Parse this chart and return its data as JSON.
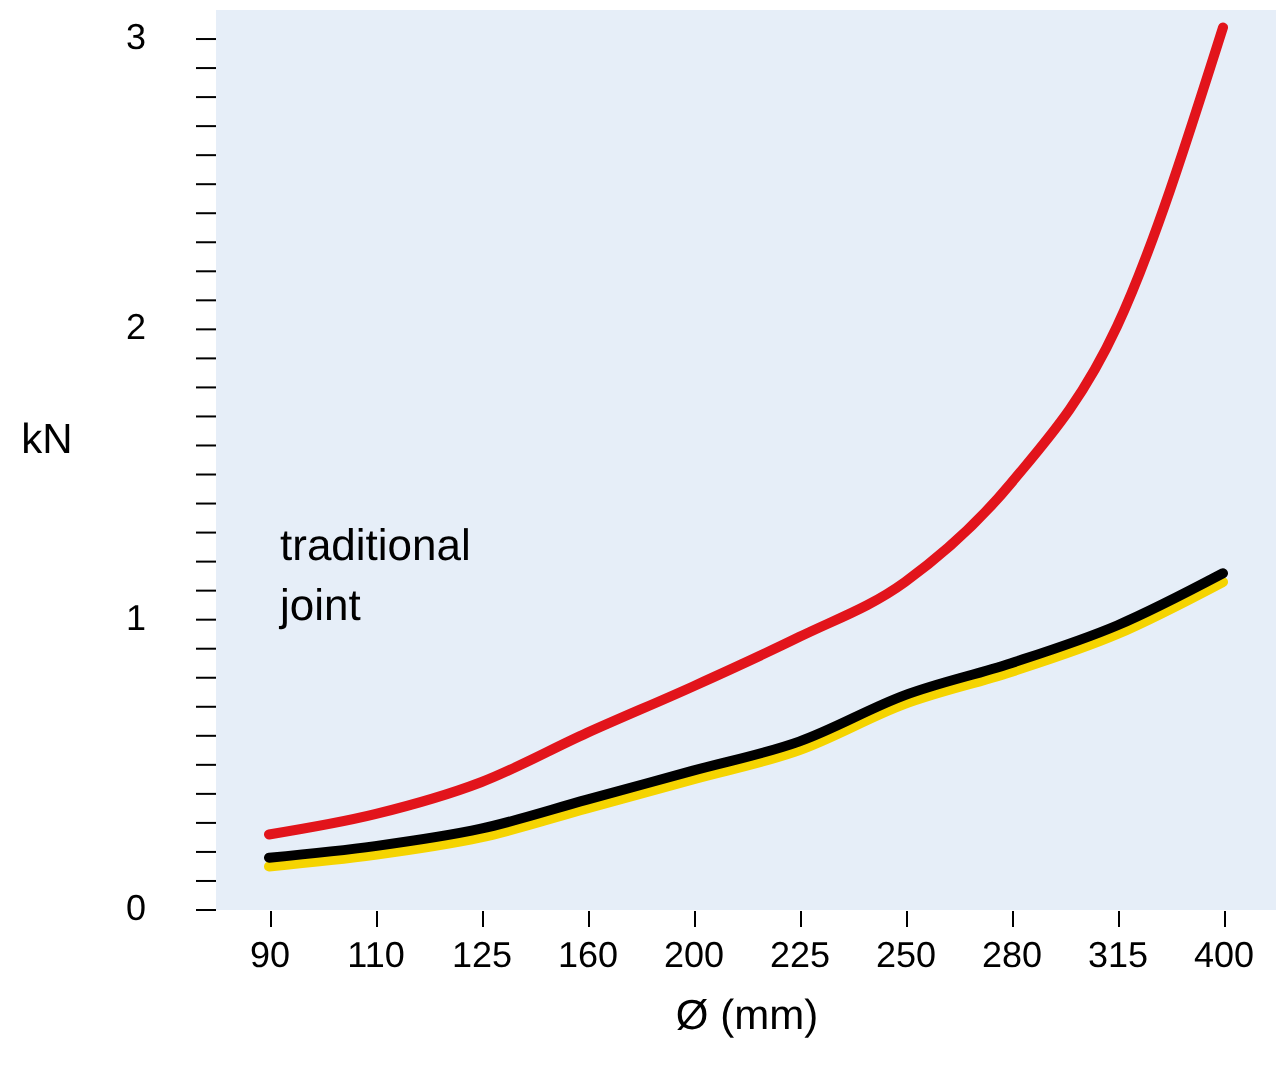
{
  "chart_data": {
    "type": "line",
    "xlabel": "Ø (mm)",
    "ylabel": "kN",
    "categories": [
      "90",
      "110",
      "125",
      "160",
      "200",
      "225",
      "250",
      "280",
      "315",
      "400"
    ],
    "series": [
      {
        "name": "traditional joint",
        "color": "#e2141b",
        "values": [
          0.26,
          0.33,
          0.44,
          0.61,
          0.77,
          0.94,
          1.13,
          1.47,
          2.01,
          3.04
        ]
      },
      {
        "color": "#f5d400",
        "values": [
          0.15,
          0.19,
          0.25,
          0.35,
          0.45,
          0.55,
          0.71,
          0.82,
          0.95,
          1.13
        ]
      },
      {
        "color": "#000000",
        "values": [
          0.18,
          0.22,
          0.28,
          0.38,
          0.48,
          0.58,
          0.74,
          0.85,
          0.98,
          1.16
        ]
      }
    ],
    "ylim": [
      0,
      3.1
    ],
    "yticks": [
      0,
      {
        "value": 0.1,
        "label": null
      },
      {
        "value": 0.2,
        "label": null
      },
      {
        "value": 0.3,
        "label": null
      },
      {
        "value": 0.4,
        "label": null
      },
      {
        "value": 0.5,
        "label": null
      },
      {
        "value": 0.6,
        "label": null
      },
      {
        "value": 0.7,
        "label": null
      },
      {
        "value": 0.8,
        "label": null
      },
      {
        "value": 0.9,
        "label": null
      },
      1,
      {
        "value": 1.1,
        "label": null
      },
      {
        "value": 1.2,
        "label": null
      },
      {
        "value": 1.3,
        "label": null
      },
      {
        "value": 1.4,
        "label": null
      },
      {
        "value": 1.5,
        "label": null
      },
      {
        "value": 1.6,
        "label": null
      },
      {
        "value": 1.7,
        "label": null
      },
      {
        "value": 1.8,
        "label": null
      },
      {
        "value": 1.9,
        "label": null
      },
      2,
      {
        "value": 2.1,
        "label": null
      },
      {
        "value": 2.2,
        "label": null
      },
      {
        "value": 2.3,
        "label": null
      },
      {
        "value": 2.4,
        "label": null
      },
      {
        "value": 2.5,
        "label": null
      },
      {
        "value": 2.6,
        "label": null
      },
      {
        "value": 2.7,
        "label": null
      },
      {
        "value": 2.8,
        "label": null
      },
      {
        "value": 2.9,
        "label": null
      },
      3
    ],
    "grid": false,
    "marker": "none",
    "line_style": "solid"
  }
}
